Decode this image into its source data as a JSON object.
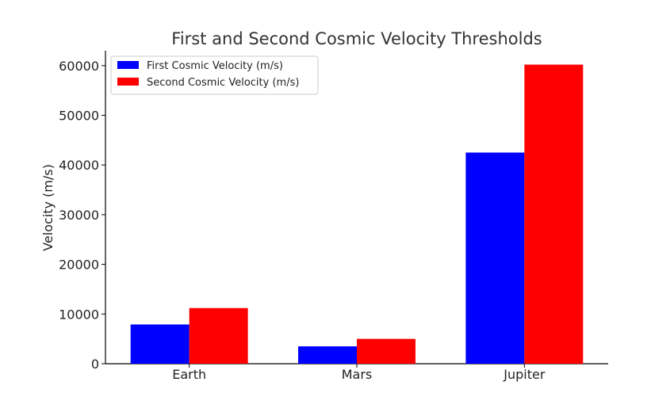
{
  "chart_data": {
    "type": "bar",
    "title": "First and Second Cosmic Velocity Thresholds",
    "xlabel": "",
    "ylabel": "Velocity (m/s)",
    "categories": [
      "Earth",
      "Mars",
      "Jupiter"
    ],
    "series": [
      {
        "name": "First Cosmic Velocity (m/s)",
        "color": "#0000ff",
        "values": [
          7900,
          3500,
          42500
        ]
      },
      {
        "name": "Second Cosmic Velocity (m/s)",
        "color": "#ff0000",
        "values": [
          11200,
          5000,
          60200
        ]
      }
    ],
    "ylim": [
      0,
      63000
    ],
    "yticks": [
      0,
      10000,
      20000,
      30000,
      40000,
      50000,
      60000
    ],
    "grid": false,
    "legend_position": "top-left"
  }
}
